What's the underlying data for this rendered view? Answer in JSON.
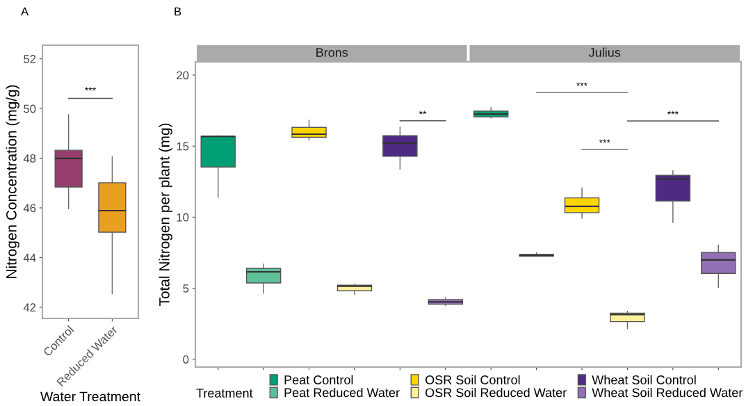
{
  "chart_data": [
    {
      "type": "box",
      "ylabel": "Nitrogen Concentration (mg/g)",
      "xlabel": "Water Treatment",
      "categories": [
        "Control",
        "Reduced Water"
      ],
      "colors": [
        "#963f6e",
        "#e9a021"
      ],
      "ylim": [
        41.55,
        52.55
      ],
      "yticks": [
        42,
        44,
        46,
        48,
        50,
        52
      ],
      "grid": false,
      "legend": false,
      "boxes": [
        {
          "low": 45.97,
          "q1": 46.84,
          "median": 47.99,
          "q3": 48.32,
          "high": 49.75
        },
        {
          "low": 42.55,
          "q1": 45.02,
          "median": 45.89,
          "q3": 47.01,
          "high": 48.06
        }
      ],
      "annotations": [
        "A",
        "***"
      ]
    },
    {
      "type": "box",
      "ylabel": "Total Nitrogen per plant (mg)",
      "categories": [
        null,
        null,
        null,
        null,
        null,
        null,
        null,
        null,
        null,
        null,
        null,
        null
      ],
      "ylim": [
        -0.55,
        20.93
      ],
      "yticks": [
        0,
        5,
        10,
        15,
        20
      ],
      "grid": false,
      "legend": "bottom",
      "legend_title": "Treatment",
      "series": [
        {
          "name": "Peat Control",
          "color": "#009e73",
          "boxes": [
            {
              "low": 11.41,
              "q1": 13.53,
              "median": 15.69,
              "q3": 15.69,
              "high": 15.74
            },
            null,
            null,
            null,
            null,
            null,
            {
              "low": 16.98,
              "q1": 17.06,
              "median": 17.26,
              "q3": 17.47,
              "high": 17.71
            },
            null,
            null,
            null,
            null,
            null
          ]
        },
        {
          "name": "Peat Reduced Water",
          "color": "#5fbf98",
          "boxes": [
            null,
            {
              "low": 4.65,
              "q1": 5.37,
              "median": 6.15,
              "q3": 6.4,
              "high": 6.69
            },
            null,
            null,
            null,
            null,
            null,
            {
              "low": 7.25,
              "q1": 7.25,
              "median": 7.32,
              "q3": 7.38,
              "high": 7.48
            },
            null,
            null,
            null,
            null
          ]
        },
        {
          "name": "OSR Soil Control",
          "color": "#ffd500",
          "boxes": [
            null,
            null,
            {
              "low": 15.43,
              "q1": 15.62,
              "median": 15.84,
              "q3": 16.32,
              "high": 16.82
            },
            null,
            null,
            null,
            null,
            null,
            {
              "low": 9.93,
              "q1": 10.32,
              "median": 10.76,
              "q3": 11.36,
              "high": 12.05
            },
            null,
            null,
            null
          ]
        },
        {
          "name": "OSR Soil Reduced Water",
          "color": "#fff09a",
          "boxes": [
            null,
            null,
            null,
            {
              "low": 4.57,
              "q1": 4.82,
              "median": 5.14,
              "q3": 5.21,
              "high": 5.29
            },
            null,
            null,
            null,
            null,
            null,
            {
              "low": 2.16,
              "q1": 2.65,
              "median": 3.15,
              "q3": 3.25,
              "high": 3.38
            },
            null,
            null
          ]
        },
        {
          "name": "Wheat Soil Control",
          "color": "#4e2a84",
          "boxes": [
            null,
            null,
            null,
            null,
            {
              "low": 13.39,
              "q1": 14.28,
              "median": 15.2,
              "q3": 15.74,
              "high": 16.33
            },
            null,
            null,
            null,
            null,
            null,
            {
              "low": 9.63,
              "q1": 11.14,
              "median": 12.69,
              "q3": 12.95,
              "high": 13.26
            },
            null
          ]
        },
        {
          "name": "Wheat Soil Reduced Water",
          "color": "#9370b5",
          "boxes": [
            null,
            null,
            null,
            null,
            null,
            {
              "low": 3.79,
              "q1": 3.87,
              "median": 4.03,
              "q3": 4.2,
              "high": 4.33
            },
            null,
            null,
            null,
            null,
            null,
            {
              "low": 5.06,
              "q1": 6.04,
              "median": 6.99,
              "q3": 7.51,
              "high": 8.03
            }
          ]
        }
      ],
      "annotations": [
        "B",
        "Brons",
        "Julius",
        "**",
        "***",
        "***",
        "***"
      ]
    }
  ]
}
